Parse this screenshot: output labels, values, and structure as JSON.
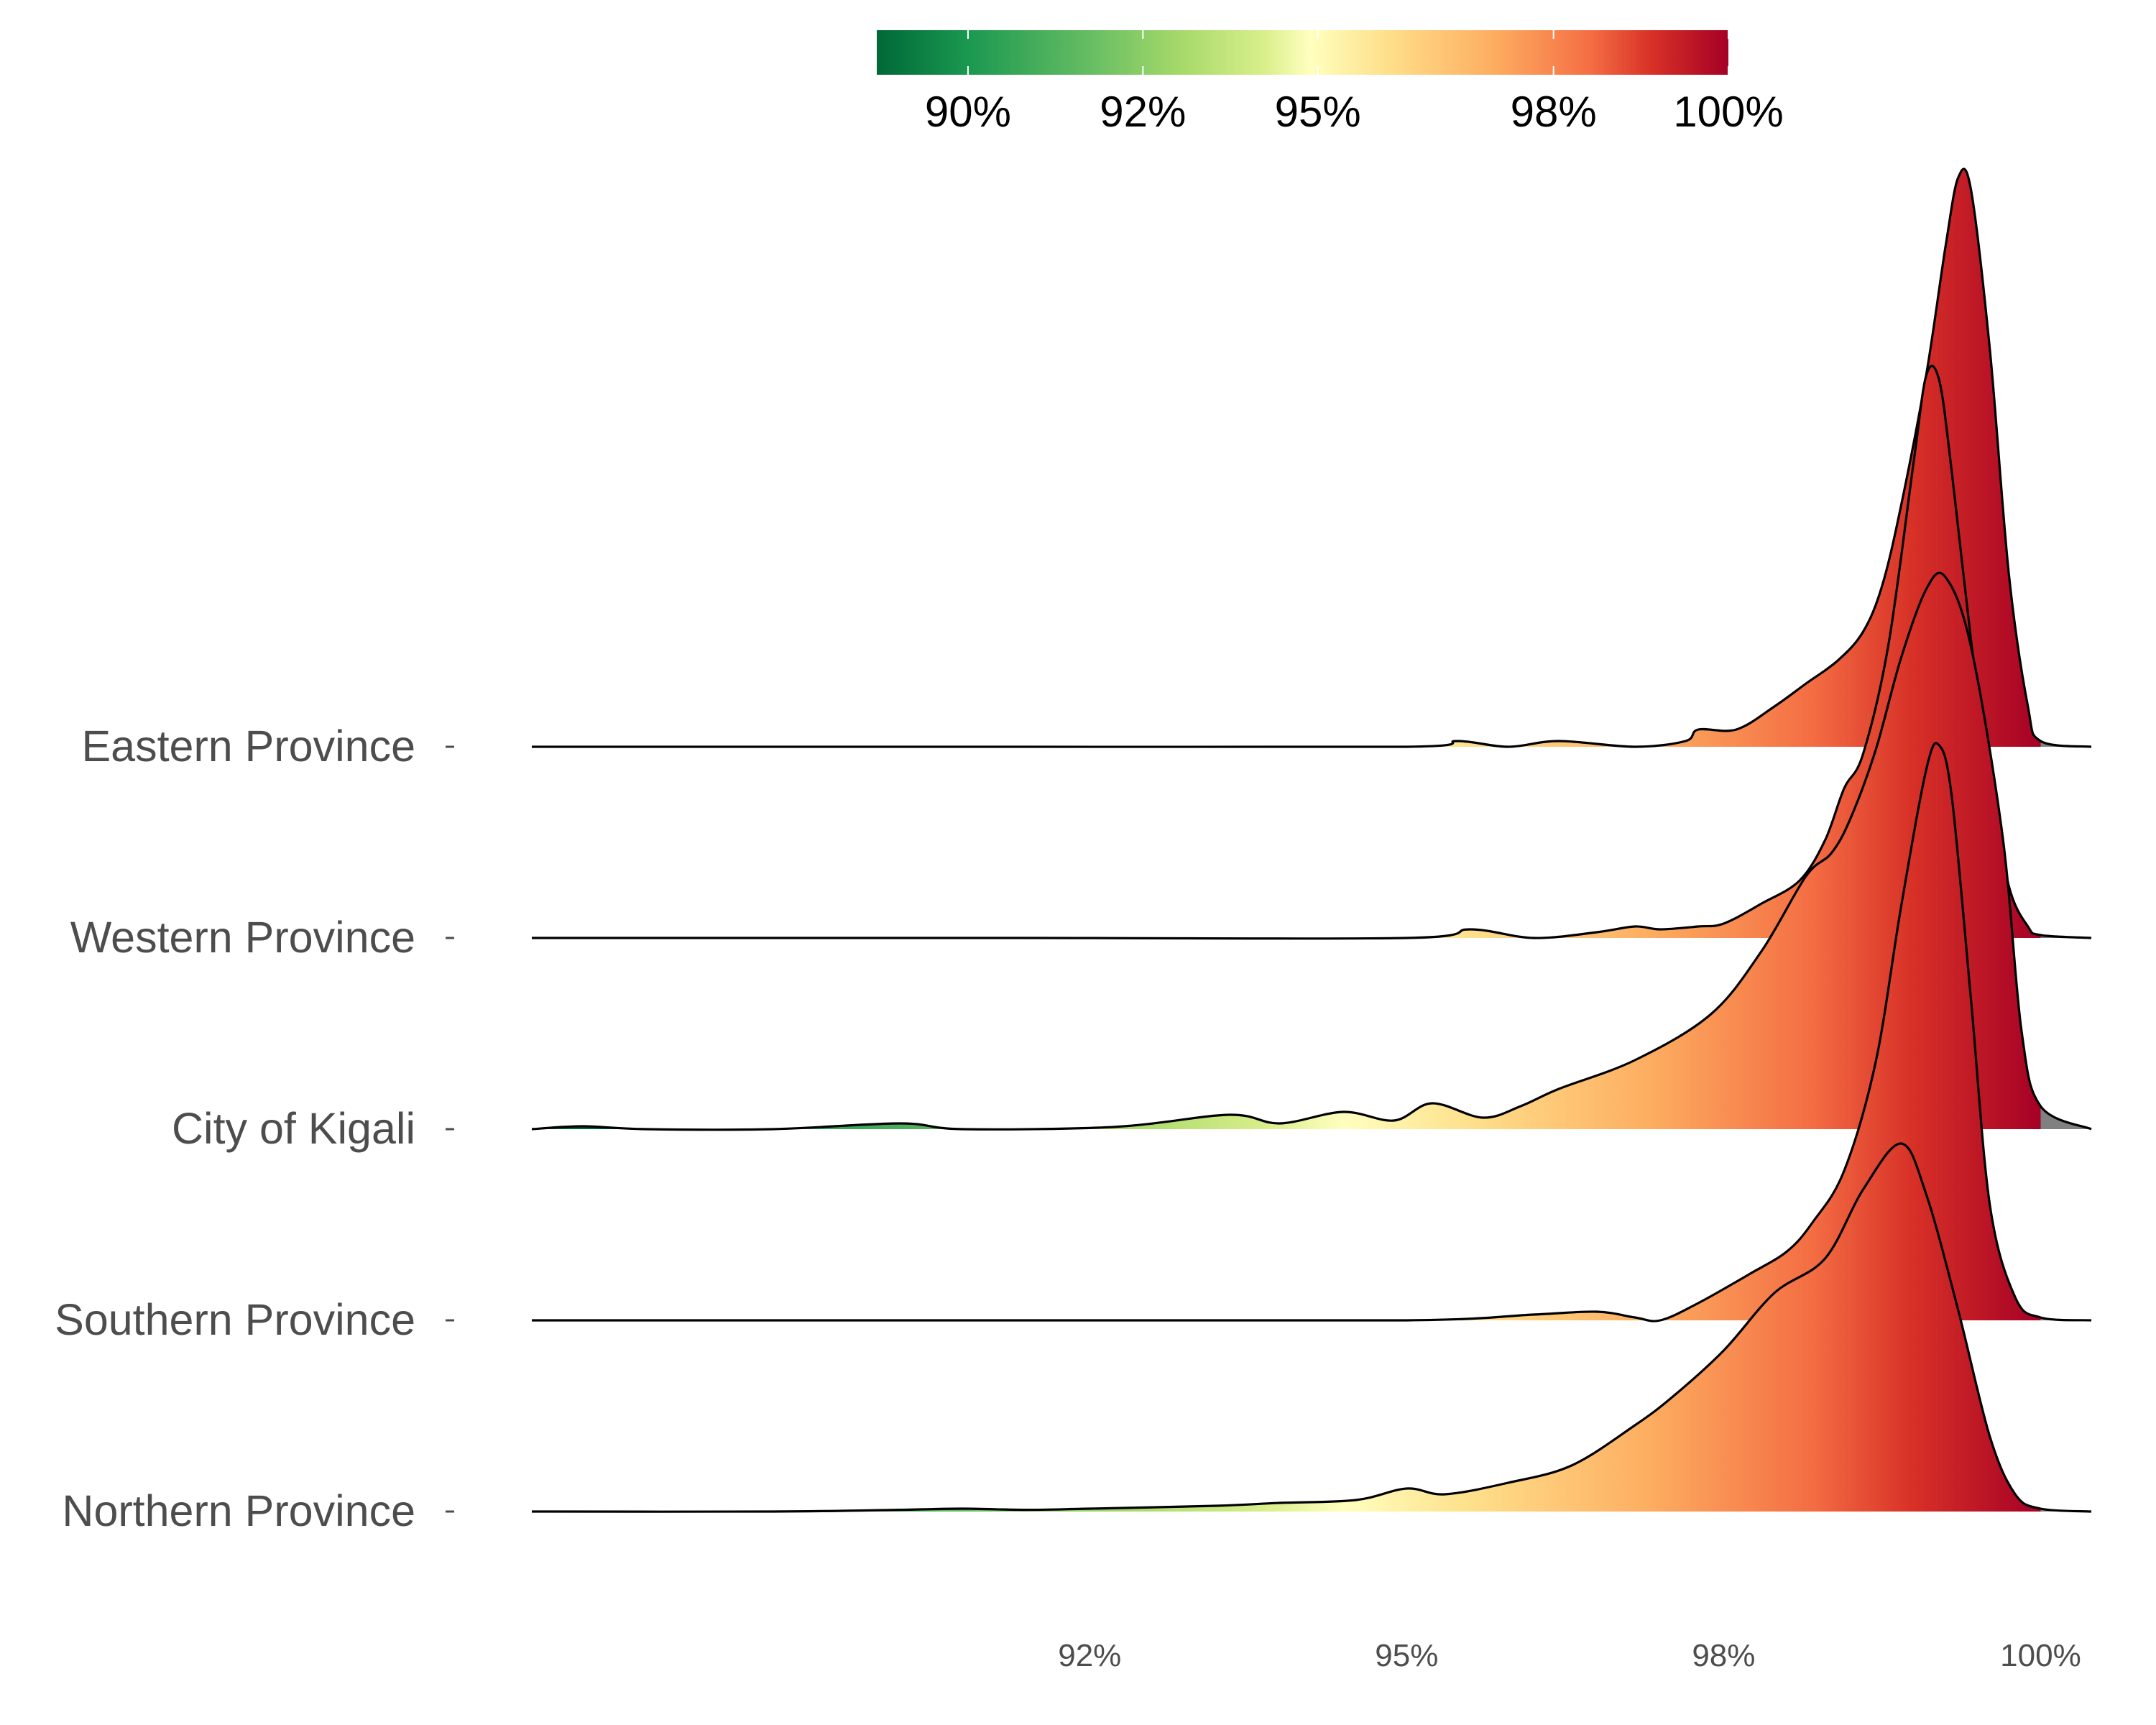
{
  "chart_data": {
    "type": "ridgeline",
    "title": "",
    "xlabel": "",
    "ylabel": "",
    "x_unit": "%",
    "xlim": [
      88.1,
      100.4
    ],
    "x_ticks": [
      {
        "value": 92.5,
        "label": "92%"
      },
      {
        "value": 95,
        "label": "95%"
      },
      {
        "value": 97.5,
        "label": "98%"
      },
      {
        "value": 100,
        "label": "100%"
      }
    ],
    "color_scale": {
      "name": "RdYlGn (reversed)",
      "domain": [
        88.8,
        100
      ],
      "stops": [
        {
          "value": 88.8,
          "color": "#006837"
        },
        {
          "value": 90.0,
          "color": "#1a9850"
        },
        {
          "value": 91.6,
          "color": "#66bd63"
        },
        {
          "value": 92.8,
          "color": "#a6d96a"
        },
        {
          "value": 93.9,
          "color": "#d9ef8b"
        },
        {
          "value": 94.5,
          "color": "#ffffbf"
        },
        {
          "value": 95.5,
          "color": "#fee08b"
        },
        {
          "value": 96.9,
          "color": "#fdae61"
        },
        {
          "value": 98.2,
          "color": "#f46d43"
        },
        {
          "value": 99.0,
          "color": "#d73027"
        },
        {
          "value": 100,
          "color": "#a50026"
        }
      ],
      "out_of_range_color": "#808080",
      "legend_ticks": [
        {
          "value": 90,
          "label": "90%"
        },
        {
          "value": 92.3,
          "label": "92%"
        },
        {
          "value": 94.6,
          "label": "95%"
        },
        {
          "value": 97.7,
          "label": "98%"
        },
        {
          "value": 100,
          "label": "100%"
        }
      ]
    },
    "series": [
      {
        "name": "Eastern Province",
        "points": [
          [
            88.1,
            0
          ],
          [
            92,
            0
          ],
          [
            95,
            0
          ],
          [
            95.4,
            0.01
          ],
          [
            95.8,
            0
          ],
          [
            96.2,
            0.01
          ],
          [
            96.8,
            0
          ],
          [
            97.2,
            0.01
          ],
          [
            97.3,
            0.03
          ],
          [
            97.6,
            0.03
          ],
          [
            97.9,
            0.07
          ],
          [
            98.15,
            0.11
          ],
          [
            98.4,
            0.15
          ],
          [
            98.6,
            0.2
          ],
          [
            98.75,
            0.28
          ],
          [
            98.9,
            0.42
          ],
          [
            99.1,
            0.65
          ],
          [
            99.25,
            0.87
          ],
          [
            99.35,
            0.99
          ],
          [
            99.45,
            0.97
          ],
          [
            99.6,
            0.69
          ],
          [
            99.75,
            0.3
          ],
          [
            99.9,
            0.07
          ],
          [
            100,
            0.01
          ],
          [
            100.4,
            0
          ]
        ]
      },
      {
        "name": "Western Province",
        "points": [
          [
            88.1,
            0
          ],
          [
            92,
            0
          ],
          [
            95,
            0
          ],
          [
            95.5,
            0.015
          ],
          [
            96,
            0
          ],
          [
            96.5,
            0.01
          ],
          [
            96.8,
            0.02
          ],
          [
            97,
            0.015
          ],
          [
            97.3,
            0.02
          ],
          [
            97.5,
            0.025
          ],
          [
            97.8,
            0.06
          ],
          [
            98.1,
            0.1
          ],
          [
            98.3,
            0.17
          ],
          [
            98.45,
            0.26
          ],
          [
            98.6,
            0.32
          ],
          [
            98.8,
            0.51
          ],
          [
            99.0,
            0.83
          ],
          [
            99.1,
            0.98
          ],
          [
            99.2,
            0.97
          ],
          [
            99.3,
            0.81
          ],
          [
            99.45,
            0.52
          ],
          [
            99.6,
            0.27
          ],
          [
            99.75,
            0.09
          ],
          [
            99.9,
            0.02
          ],
          [
            100,
            0.005
          ],
          [
            100.4,
            0
          ]
        ]
      },
      {
        "name": "City of Kigali",
        "points": [
          [
            88.1,
            0
          ],
          [
            88.5,
            0.005
          ],
          [
            89,
            0
          ],
          [
            90,
            0
          ],
          [
            91,
            0.01
          ],
          [
            91.5,
            0
          ],
          [
            92.7,
            0.004
          ],
          [
            93.6,
            0.025
          ],
          [
            94,
            0.01
          ],
          [
            94.5,
            0.03
          ],
          [
            94.9,
            0.015
          ],
          [
            95.2,
            0.045
          ],
          [
            95.6,
            0.02
          ],
          [
            95.9,
            0.04
          ],
          [
            96.2,
            0.07
          ],
          [
            96.8,
            0.12
          ],
          [
            97.4,
            0.2
          ],
          [
            97.8,
            0.31
          ],
          [
            98.15,
            0.44
          ],
          [
            98.35,
            0.48
          ],
          [
            98.5,
            0.54
          ],
          [
            98.7,
            0.66
          ],
          [
            98.9,
            0.82
          ],
          [
            99.1,
            0.94
          ],
          [
            99.25,
            0.96
          ],
          [
            99.45,
            0.84
          ],
          [
            99.7,
            0.51
          ],
          [
            99.85,
            0.17
          ],
          [
            100,
            0.04
          ],
          [
            100.4,
            0
          ]
        ]
      },
      {
        "name": "Southern Province",
        "points": [
          [
            88.1,
            0
          ],
          [
            92,
            0
          ],
          [
            95,
            0
          ],
          [
            96,
            0.01
          ],
          [
            96.5,
            0.015
          ],
          [
            96.8,
            0.005
          ],
          [
            97.0,
            0
          ],
          [
            97.3,
            0.03
          ],
          [
            97.7,
            0.08
          ],
          [
            98.0,
            0.12
          ],
          [
            98.2,
            0.17
          ],
          [
            98.45,
            0.26
          ],
          [
            98.7,
            0.45
          ],
          [
            98.9,
            0.72
          ],
          [
            99.1,
            0.96
          ],
          [
            99.2,
            1.0
          ],
          [
            99.3,
            0.91
          ],
          [
            99.45,
            0.56
          ],
          [
            99.6,
            0.2
          ],
          [
            99.8,
            0.04
          ],
          [
            100,
            0.005
          ],
          [
            100.4,
            0
          ]
        ]
      },
      {
        "name": "Northern Province",
        "points": [
          [
            88.1,
            0
          ],
          [
            90,
            0
          ],
          [
            91,
            0.003
          ],
          [
            91.5,
            0.005
          ],
          [
            92,
            0.003
          ],
          [
            92.5,
            0.005
          ],
          [
            93.5,
            0.01
          ],
          [
            94,
            0.015
          ],
          [
            94.6,
            0.02
          ],
          [
            95.0,
            0.04
          ],
          [
            95.3,
            0.03
          ],
          [
            95.8,
            0.05
          ],
          [
            96.3,
            0.08
          ],
          [
            96.8,
            0.15
          ],
          [
            97.1,
            0.2
          ],
          [
            97.5,
            0.28
          ],
          [
            97.9,
            0.38
          ],
          [
            98.3,
            0.44
          ],
          [
            98.6,
            0.56
          ],
          [
            98.9,
            0.64
          ],
          [
            99.1,
            0.55
          ],
          [
            99.35,
            0.35
          ],
          [
            99.6,
            0.13
          ],
          [
            99.8,
            0.03
          ],
          [
            100,
            0.005
          ],
          [
            100.4,
            0
          ]
        ]
      }
    ]
  }
}
